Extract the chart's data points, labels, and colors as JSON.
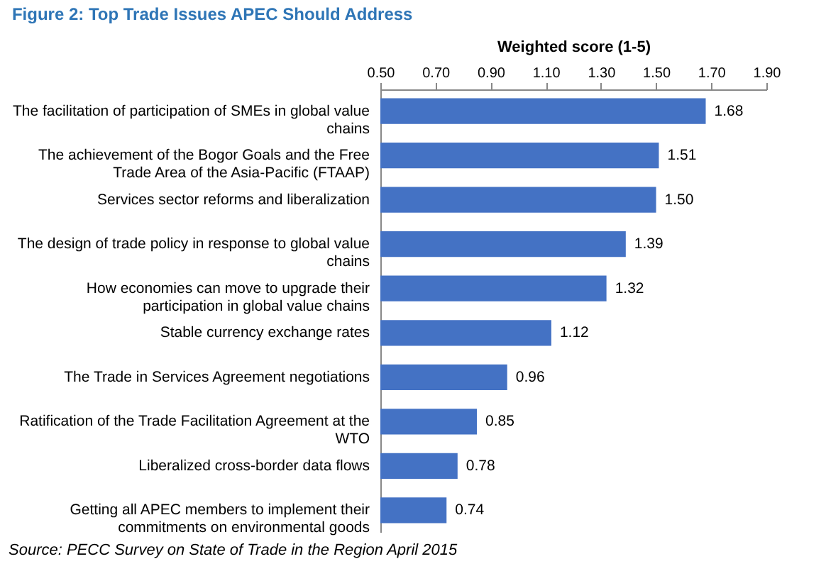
{
  "chart_data": {
    "type": "bar",
    "orientation": "horizontal",
    "title": "Figure 2: Top Trade Issues APEC Should Address",
    "xlabel": "Weighted score (1-5)",
    "categories": [
      "The facilitation of participation of SMEs in global value chains",
      "The achievement of the Bogor Goals and the Free Trade Area of the Asia-Pacific (FTAAP)",
      "Services sector reforms and liberalization",
      "The design of trade policy in response to global value chains",
      "How economies can move to upgrade their participation in global value chains",
      "Stable currency exchange rates",
      "The Trade in Services Agreement negotiations",
      "Ratification of  the Trade Facilitation Agreement at the WTO",
      "Liberalized cross-border data flows",
      "Getting all APEC members to implement their commitments on environmental goods"
    ],
    "values": [
      1.68,
      1.51,
      1.5,
      1.39,
      1.32,
      1.12,
      0.96,
      0.85,
      0.78,
      0.74
    ],
    "value_labels": [
      "1.68",
      "1.51",
      "1.50",
      "1.39",
      "1.32",
      "1.12",
      "0.96",
      "0.85",
      "0.78",
      "0.74"
    ],
    "color": "#4472c4",
    "xlim": [
      0.5,
      1.9
    ],
    "xticks": [
      {
        "value": 0.5,
        "label": "0.50"
      },
      {
        "value": 0.7,
        "label": "0.70"
      },
      {
        "value": 0.9,
        "label": "0.90"
      },
      {
        "value": 1.1,
        "label": "1.10"
      },
      {
        "value": 1.3,
        "label": "1.30"
      },
      {
        "value": 1.5,
        "label": "1.50"
      },
      {
        "value": 1.7,
        "label": "1.70"
      },
      {
        "value": 1.9,
        "label": "1.90"
      }
    ],
    "grid": false,
    "annotations": [
      "Source: PECC Survey on State of Trade in the Region April 2015"
    ]
  }
}
